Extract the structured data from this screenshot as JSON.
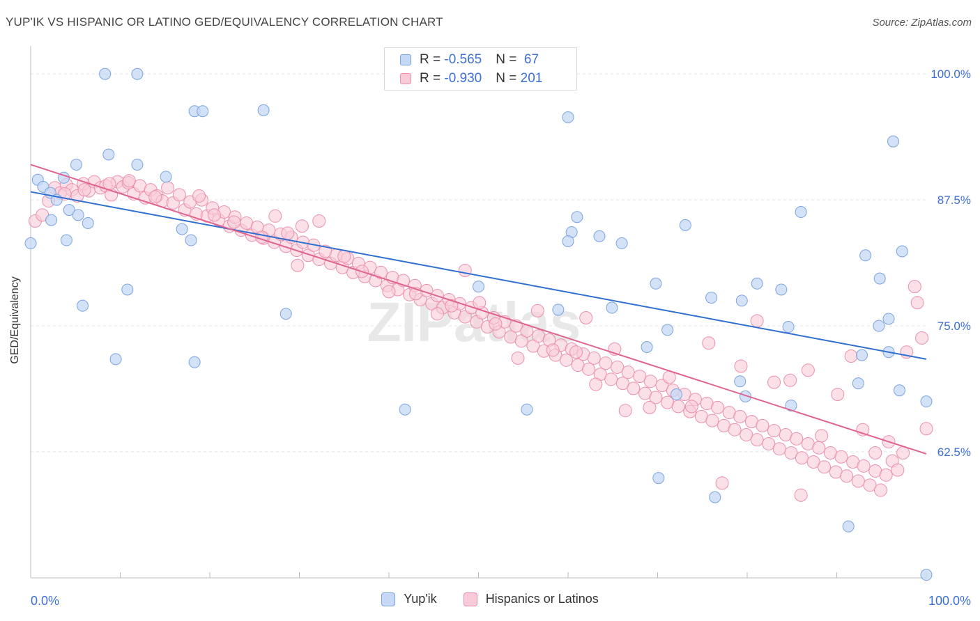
{
  "title": "YUP'IK VS HISPANIC OR LATINO GED/EQUIVALENCY CORRELATION CHART",
  "source": "Source: ZipAtlas.com",
  "watermark": "ZIPatlas",
  "colors": {
    "blue_fill": "#c5d8f5",
    "blue_stroke": "#7ba3e0",
    "blue_line": "#2f6fcf",
    "pink_fill": "#f9cbd8",
    "pink_stroke": "#ec8fab",
    "pink_line": "#e0628f",
    "tick_blue": "#3b6fd4",
    "grid": "#e3e3e3",
    "axis": "#bbbbbb"
  },
  "legend": {
    "rows": [
      {
        "r_label": "R = ",
        "r_value": "-0.565",
        "n_label": "N = ",
        "n_value": " 67"
      },
      {
        "r_label": "R = ",
        "r_value": "-0.930",
        "n_label": "N = ",
        "n_value": "201"
      }
    ]
  },
  "chart_data": {
    "type": "scatter",
    "title": "YUP'IK VS HISPANIC OR LATINO GED/EQUIVALENCY CORRELATION CHART",
    "xlabel": "",
    "ylabel": "GED/Equivalency",
    "x_tick_labels": [
      "0.0%",
      "100.0%"
    ],
    "y_tick_labels": [
      "100.0%",
      "87.5%",
      "75.0%",
      "62.5%"
    ],
    "y_ticks": [
      100,
      87.5,
      75,
      62.5
    ],
    "xlim": [
      0,
      100
    ],
    "ylim": [
      50,
      102.5
    ],
    "grid": true,
    "legend_position": "top-center",
    "series": [
      {
        "name": "Yup'ik",
        "R": -0.565,
        "N": 67,
        "trend": {
          "x": [
            0,
            100
          ],
          "y": [
            88.3,
            71.7
          ]
        },
        "points": [
          [
            8.3,
            100.0
          ],
          [
            11.9,
            100.0
          ],
          [
            18.3,
            96.3
          ],
          [
            19.2,
            96.3
          ],
          [
            26.0,
            96.4
          ],
          [
            60.0,
            95.7
          ],
          [
            96.3,
            93.3
          ],
          [
            8.7,
            92.0
          ],
          [
            11.9,
            91.0
          ],
          [
            5.1,
            91.0
          ],
          [
            15.1,
            89.8
          ],
          [
            0.8,
            89.5
          ],
          [
            1.4,
            88.8
          ],
          [
            3.7,
            89.7
          ],
          [
            2.2,
            88.2
          ],
          [
            2.9,
            87.5
          ],
          [
            0.0,
            83.2
          ],
          [
            2.3,
            85.5
          ],
          [
            4.3,
            86.5
          ],
          [
            5.3,
            86.0
          ],
          [
            6.4,
            85.2
          ],
          [
            4.0,
            83.5
          ],
          [
            16.9,
            84.6
          ],
          [
            17.9,
            83.5
          ],
          [
            61.0,
            85.8
          ],
          [
            60.4,
            84.3
          ],
          [
            60.0,
            83.4
          ],
          [
            63.5,
            83.9
          ],
          [
            66.0,
            83.2
          ],
          [
            73.1,
            85.0
          ],
          [
            86.0,
            86.3
          ],
          [
            93.2,
            82.0
          ],
          [
            97.3,
            82.4
          ],
          [
            5.8,
            77.0
          ],
          [
            10.8,
            78.6
          ],
          [
            28.5,
            76.2
          ],
          [
            50.0,
            78.9
          ],
          [
            69.8,
            79.2
          ],
          [
            76.0,
            77.8
          ],
          [
            79.4,
            77.5
          ],
          [
            81.1,
            79.2
          ],
          [
            83.8,
            78.6
          ],
          [
            94.8,
            79.7
          ],
          [
            58.9,
            76.6
          ],
          [
            64.9,
            76.8
          ],
          [
            71.1,
            74.6
          ],
          [
            84.6,
            74.9
          ],
          [
            94.7,
            75.0
          ],
          [
            95.8,
            75.7
          ],
          [
            9.5,
            71.7
          ],
          [
            18.3,
            71.4
          ],
          [
            68.8,
            72.9
          ],
          [
            92.8,
            72.1
          ],
          [
            95.8,
            72.4
          ],
          [
            41.8,
            66.7
          ],
          [
            55.4,
            66.7
          ],
          [
            72.1,
            68.2
          ],
          [
            79.2,
            69.5
          ],
          [
            79.8,
            68.0
          ],
          [
            84.9,
            67.1
          ],
          [
            92.4,
            69.3
          ],
          [
            97.0,
            68.6
          ],
          [
            100.0,
            67.5
          ],
          [
            70.1,
            59.9
          ],
          [
            76.4,
            58.0
          ],
          [
            91.3,
            55.1
          ],
          [
            100.0,
            50.3
          ]
        ]
      },
      {
        "name": "Hispanics or Latinos",
        "R": -0.93,
        "N": 201,
        "trend": {
          "x": [
            0,
            100
          ],
          "y": [
            91.0,
            62.3
          ]
        },
        "points": [
          [
            0.5,
            85.4
          ],
          [
            1.3,
            86.0
          ],
          [
            2.0,
            87.4
          ],
          [
            2.7,
            88.7
          ],
          [
            3.3,
            88.2
          ],
          [
            4.0,
            89.0
          ],
          [
            4.6,
            88.5
          ],
          [
            5.2,
            87.9
          ],
          [
            5.9,
            89.1
          ],
          [
            6.5,
            88.4
          ],
          [
            7.1,
            89.3
          ],
          [
            7.8,
            88.7
          ],
          [
            8.4,
            88.9
          ],
          [
            9.0,
            88.0
          ],
          [
            9.7,
            89.3
          ],
          [
            10.3,
            88.8
          ],
          [
            10.9,
            89.2
          ],
          [
            11.5,
            88.1
          ],
          [
            12.2,
            88.9
          ],
          [
            12.8,
            87.7
          ],
          [
            13.4,
            88.5
          ],
          [
            14.1,
            87.9
          ],
          [
            14.7,
            87.4
          ],
          [
            15.3,
            88.7
          ],
          [
            15.9,
            87.2
          ],
          [
            16.6,
            88.0
          ],
          [
            17.2,
            86.5
          ],
          [
            17.8,
            87.3
          ],
          [
            18.5,
            86.1
          ],
          [
            19.1,
            87.5
          ],
          [
            19.7,
            85.9
          ],
          [
            20.3,
            86.7
          ],
          [
            21.0,
            85.5
          ],
          [
            21.6,
            86.3
          ],
          [
            22.2,
            84.9
          ],
          [
            22.8,
            85.8
          ],
          [
            23.5,
            84.5
          ],
          [
            24.1,
            85.2
          ],
          [
            24.7,
            84.0
          ],
          [
            25.3,
            84.8
          ],
          [
            26.0,
            83.7
          ],
          [
            26.6,
            84.5
          ],
          [
            27.2,
            83.3
          ],
          [
            27.9,
            84.1
          ],
          [
            28.5,
            82.9
          ],
          [
            29.1,
            83.8
          ],
          [
            29.7,
            82.5
          ],
          [
            30.4,
            83.3
          ],
          [
            31.0,
            82.0
          ],
          [
            31.6,
            83.0
          ],
          [
            32.2,
            81.6
          ],
          [
            32.9,
            82.4
          ],
          [
            33.5,
            81.2
          ],
          [
            34.1,
            82.0
          ],
          [
            34.8,
            80.8
          ],
          [
            35.4,
            81.7
          ],
          [
            36.0,
            80.3
          ],
          [
            36.6,
            81.2
          ],
          [
            37.3,
            79.9
          ],
          [
            37.9,
            80.8
          ],
          [
            38.5,
            79.5
          ],
          [
            39.1,
            80.3
          ],
          [
            39.8,
            79.0
          ],
          [
            40.4,
            79.8
          ],
          [
            41.0,
            78.6
          ],
          [
            41.6,
            79.5
          ],
          [
            42.3,
            78.1
          ],
          [
            42.9,
            79.0
          ],
          [
            43.5,
            77.6
          ],
          [
            44.2,
            78.5
          ],
          [
            44.8,
            77.2
          ],
          [
            45.4,
            78.0
          ],
          [
            46.0,
            76.8
          ],
          [
            46.7,
            77.6
          ],
          [
            47.3,
            76.3
          ],
          [
            47.9,
            77.2
          ],
          [
            48.5,
            75.9
          ],
          [
            49.2,
            76.8
          ],
          [
            49.8,
            75.4
          ],
          [
            50.4,
            76.3
          ],
          [
            51.0,
            74.9
          ],
          [
            51.7,
            75.8
          ],
          [
            52.3,
            74.4
          ],
          [
            52.9,
            75.4
          ],
          [
            53.6,
            73.9
          ],
          [
            54.2,
            75.0
          ],
          [
            54.8,
            73.5
          ],
          [
            55.4,
            74.5
          ],
          [
            56.1,
            73.0
          ],
          [
            56.7,
            74.0
          ],
          [
            57.3,
            72.5
          ],
          [
            57.9,
            73.6
          ],
          [
            58.6,
            72.1
          ],
          [
            59.2,
            73.1
          ],
          [
            59.8,
            71.6
          ],
          [
            60.4,
            72.7
          ],
          [
            61.1,
            71.1
          ],
          [
            61.7,
            72.2
          ],
          [
            62.3,
            70.7
          ],
          [
            62.9,
            71.8
          ],
          [
            63.6,
            70.2
          ],
          [
            64.2,
            71.3
          ],
          [
            64.8,
            69.7
          ],
          [
            65.5,
            70.9
          ],
          [
            66.1,
            69.3
          ],
          [
            66.7,
            70.4
          ],
          [
            67.3,
            68.8
          ],
          [
            68.0,
            70.0
          ],
          [
            68.6,
            68.3
          ],
          [
            69.2,
            69.5
          ],
          [
            69.8,
            67.9
          ],
          [
            70.5,
            69.1
          ],
          [
            71.1,
            67.4
          ],
          [
            71.7,
            68.6
          ],
          [
            72.3,
            67.0
          ],
          [
            73.0,
            68.2
          ],
          [
            73.6,
            66.5
          ],
          [
            74.2,
            67.7
          ],
          [
            74.9,
            66.0
          ],
          [
            75.5,
            67.3
          ],
          [
            76.1,
            65.6
          ],
          [
            76.7,
            66.9
          ],
          [
            77.4,
            65.1
          ],
          [
            78.0,
            66.4
          ],
          [
            78.6,
            64.7
          ],
          [
            79.2,
            66.0
          ],
          [
            79.9,
            64.2
          ],
          [
            80.5,
            65.5
          ],
          [
            81.1,
            63.7
          ],
          [
            81.7,
            65.1
          ],
          [
            82.4,
            63.3
          ],
          [
            83.0,
            64.6
          ],
          [
            83.6,
            62.8
          ],
          [
            84.3,
            64.2
          ],
          [
            84.9,
            62.4
          ],
          [
            85.5,
            63.8
          ],
          [
            86.1,
            61.9
          ],
          [
            86.8,
            63.3
          ],
          [
            87.4,
            61.5
          ],
          [
            88.0,
            62.9
          ],
          [
            88.6,
            61.0
          ],
          [
            89.3,
            62.4
          ],
          [
            89.9,
            60.5
          ],
          [
            90.5,
            62.0
          ],
          [
            91.1,
            60.1
          ],
          [
            91.8,
            61.5
          ],
          [
            92.4,
            59.6
          ],
          [
            93.0,
            61.1
          ],
          [
            93.7,
            59.2
          ],
          [
            94.3,
            60.6
          ],
          [
            94.9,
            58.7
          ],
          [
            95.5,
            60.2
          ],
          [
            96.2,
            61.6
          ],
          [
            96.8,
            60.7
          ],
          [
            97.4,
            62.4
          ],
          [
            3.8,
            88.1
          ],
          [
            6.0,
            88.5
          ],
          [
            8.8,
            89.1
          ],
          [
            11.0,
            89.4
          ],
          [
            13.9,
            87.8
          ],
          [
            18.8,
            87.9
          ],
          [
            20.5,
            86.0
          ],
          [
            22.7,
            85.3
          ],
          [
            25.8,
            83.8
          ],
          [
            27.3,
            85.9
          ],
          [
            28.7,
            84.2
          ],
          [
            29.8,
            81.0
          ],
          [
            30.3,
            84.9
          ],
          [
            32.2,
            85.4
          ],
          [
            35.0,
            81.9
          ],
          [
            37.0,
            80.4
          ],
          [
            40.0,
            78.4
          ],
          [
            43.0,
            78.2
          ],
          [
            45.4,
            76.2
          ],
          [
            47.0,
            77.0
          ],
          [
            48.5,
            80.5
          ],
          [
            50.1,
            77.3
          ],
          [
            51.9,
            75.2
          ],
          [
            54.4,
            71.8
          ],
          [
            56.6,
            76.5
          ],
          [
            58.3,
            72.6
          ],
          [
            60.9,
            72.4
          ],
          [
            62.0,
            75.8
          ],
          [
            63.1,
            69.2
          ],
          [
            65.2,
            72.7
          ],
          [
            66.4,
            66.6
          ],
          [
            69.1,
            66.9
          ],
          [
            71.3,
            69.9
          ],
          [
            73.8,
            67.0
          ],
          [
            75.7,
            73.3
          ],
          [
            77.2,
            59.4
          ],
          [
            79.3,
            71.0
          ],
          [
            81.1,
            75.5
          ],
          [
            83.0,
            69.4
          ],
          [
            84.8,
            69.6
          ],
          [
            86.8,
            70.6
          ],
          [
            88.3,
            64.1
          ],
          [
            90.1,
            68.2
          ],
          [
            91.6,
            72.0
          ],
          [
            92.9,
            64.7
          ],
          [
            94.3,
            62.4
          ],
          [
            95.8,
            63.5
          ],
          [
            97.8,
            72.4
          ],
          [
            98.7,
            78.9
          ],
          [
            99.5,
            73.8
          ],
          [
            100.0,
            64.8
          ],
          [
            99.0,
            77.3
          ],
          [
            86.0,
            58.2
          ]
        ]
      }
    ]
  }
}
